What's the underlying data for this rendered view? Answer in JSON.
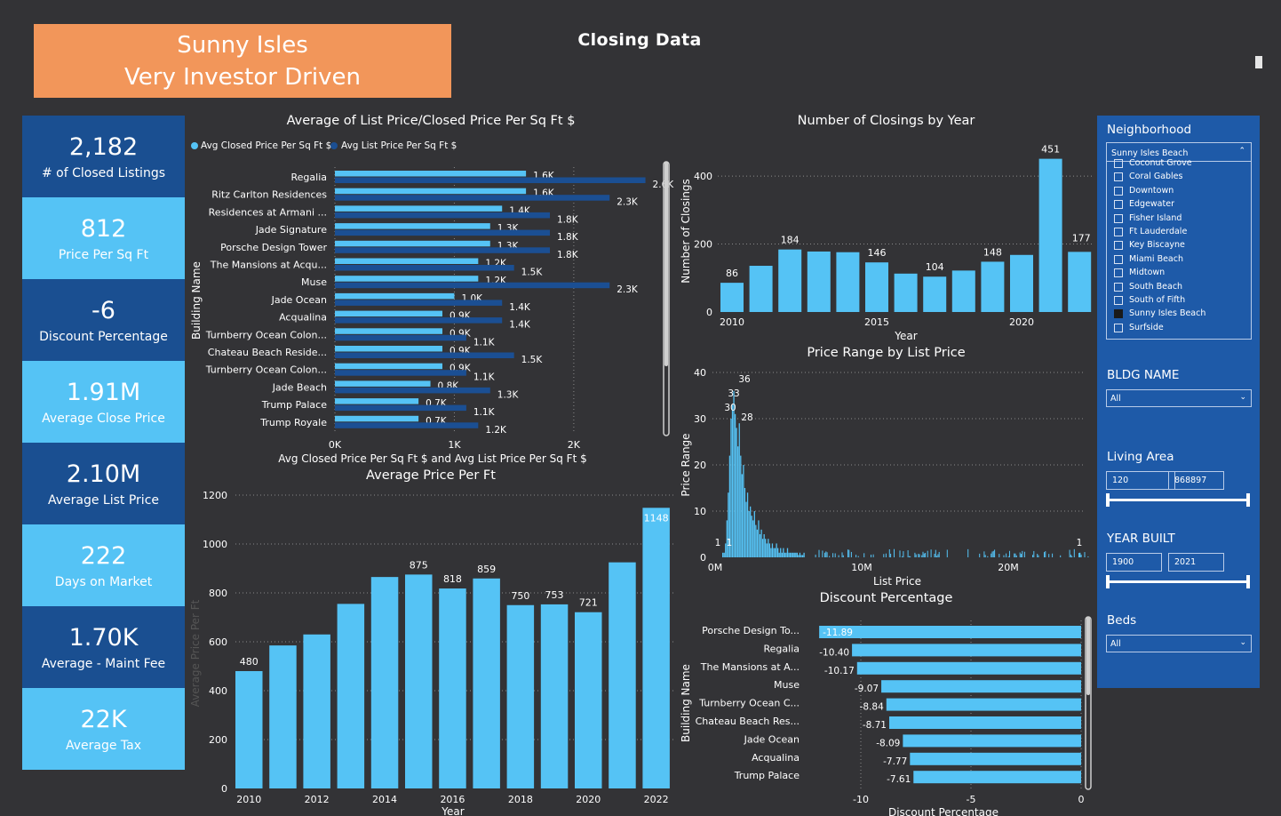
{
  "banner": {
    "line1": "Sunny Isles",
    "line2": "Very Investor Driven"
  },
  "page_title": "Closing Data",
  "colors": {
    "light_blue": "#55C3F5",
    "dark_blue": "#1B4F93",
    "kpi_dark": "#1A4F91",
    "kpi_light": "#55C3F5",
    "banner": "#F2965A",
    "background": "#333336",
    "slicer": "#1E5AA8"
  },
  "kpis": [
    {
      "value": "2,182",
      "label": "# of Closed Listings"
    },
    {
      "value": "812",
      "label": "Price Per Sq Ft"
    },
    {
      "value": "-6",
      "label": "Discount Percentage"
    },
    {
      "value": "1.91M",
      "label": "Average Close Price"
    },
    {
      "value": "2.10M",
      "label": "Average List Price"
    },
    {
      "value": "222",
      "label": "Days on Market"
    },
    {
      "value": "1.70K",
      "label": "Average - Maint Fee"
    },
    {
      "value": "22K",
      "label": "Average Tax"
    }
  ],
  "charts": {
    "psf": {
      "title": "Average of List Price/Closed Price Per Sq Ft $",
      "legend": [
        "Avg Closed Price Per Sq Ft $",
        "Avg List Price Per Sq Ft $"
      ],
      "ylabel": "Building Name",
      "xlabel": "Avg Closed Price Per Sq Ft $ and Avg List Price Per Sq Ft $"
    },
    "closings": {
      "title": "Number of Closings by Year",
      "ylabel": "Number of Closings",
      "xlabel": "Year"
    },
    "price_range": {
      "title": "Price Range by List Price",
      "ylabel": "Price Range",
      "xlabel": "List Price"
    },
    "avg_ppf": {
      "title": "Average Price Per Ft",
      "ylabel": "Average Price Per Ft",
      "xlabel": "Year"
    },
    "discount": {
      "title": "Discount Percentage",
      "ylabel": "Building Name",
      "xlabel": "Discount Percentage"
    }
  },
  "chart_data": [
    {
      "id": "psf",
      "type": "bar",
      "orientation": "horizontal",
      "categories": [
        "Regalia",
        "Ritz Carlton Residences",
        "Residences at Armani ...",
        "Jade Signature",
        "Porsche Design Tower",
        "The Mansions at Acqu...",
        "Muse",
        "Jade Ocean",
        "Acqualina",
        "Turnberry Ocean Colon...",
        "Chateau Beach Reside...",
        "Turnberry Ocean Colon...",
        "Jade Beach",
        "Trump Palace",
        "Trump Royale"
      ],
      "series": [
        {
          "name": "Avg Closed Price Per Sq Ft $",
          "values": [
            1600,
            1600,
            1400,
            1300,
            1300,
            1200,
            1200,
            1000,
            900,
            900,
            900,
            900,
            800,
            700,
            700
          ],
          "labels": [
            "1.6K",
            "1.6K",
            "1.4K",
            "1.3K",
            "1.3K",
            "1.2K",
            "1.2K",
            "1.0K",
            "0.9K",
            "0.9K",
            "0.9K",
            "0.9K",
            "0.8K",
            "0.7K",
            "0.7K"
          ]
        },
        {
          "name": "Avg List Price Per Sq Ft $",
          "values": [
            2600,
            2300,
            1800,
            1800,
            1800,
            1500,
            2300,
            1400,
            1400,
            1100,
            1500,
            1100,
            1300,
            1100,
            1200
          ],
          "labels": [
            "2.6K",
            "2.3K",
            "1.8K",
            "1.8K",
            "1.8K",
            "1.5K",
            "2.3K",
            "1.4K",
            "1.4K",
            "1.1K",
            "1.5K",
            "1.1K",
            "1.3K",
            "1.1K",
            "1.2K"
          ]
        }
      ],
      "xticks": [
        "0K",
        "1K",
        "2K"
      ],
      "xlim": [
        0,
        2700
      ]
    },
    {
      "id": "closings",
      "type": "bar",
      "x": [
        2010,
        2011,
        2012,
        2013,
        2014,
        2015,
        2016,
        2017,
        2018,
        2019,
        2020,
        2021,
        2022
      ],
      "values": [
        86,
        136,
        184,
        178,
        176,
        146,
        113,
        104,
        122,
        148,
        168,
        451,
        177
      ],
      "data_labels": [
        "86",
        "",
        "184",
        "",
        "",
        "146",
        "",
        "104",
        "",
        "148",
        "",
        "451",
        "177"
      ],
      "yticks": [
        "0",
        "200",
        "400"
      ],
      "xticks": [
        "2010",
        "2015",
        "2020"
      ],
      "ylim": [
        0,
        450
      ]
    },
    {
      "id": "price_range",
      "type": "bar",
      "yticks": [
        "0",
        "10",
        "20",
        "30",
        "40"
      ],
      "xticks": [
        "0M",
        "10M",
        "20M"
      ],
      "ylim": [
        0,
        40
      ],
      "annotations": [
        "36",
        "33",
        "30",
        "28",
        "1",
        "1",
        "1"
      ]
    },
    {
      "id": "avg_ppf",
      "type": "bar",
      "x": [
        2010,
        2011,
        2012,
        2013,
        2014,
        2015,
        2016,
        2017,
        2018,
        2019,
        2020,
        2021,
        2022
      ],
      "values": [
        480,
        585,
        630,
        755,
        865,
        875,
        818,
        859,
        750,
        753,
        721,
        925,
        1148
      ],
      "data_labels": [
        "480",
        "",
        "",
        "",
        "",
        "875",
        "818",
        "859",
        "750",
        "753",
        "721",
        "",
        "1148"
      ],
      "yticks": [
        "0",
        "200",
        "400",
        "600",
        "800",
        "1000",
        "1200"
      ],
      "xticks": [
        "2010",
        "2012",
        "2014",
        "2016",
        "2018",
        "2020",
        "2022"
      ],
      "ylim": [
        0,
        1200
      ]
    },
    {
      "id": "discount",
      "type": "bar",
      "orientation": "horizontal",
      "categories": [
        "Porsche Design To...",
        "Regalia",
        "The Mansions at A...",
        "Muse",
        "Turnberry Ocean C...",
        "Chateau Beach Res...",
        "Jade Ocean",
        "Acqualina",
        "Trump Palace"
      ],
      "values": [
        -11.89,
        -10.4,
        -10.17,
        -9.07,
        -8.84,
        -8.71,
        -8.09,
        -7.77,
        -7.61
      ],
      "labels": [
        "-11.89",
        "-10.40",
        "-10.17",
        "-9.07",
        "-8.84",
        "-8.71",
        "-8.09",
        "-7.77",
        "-7.61"
      ],
      "xticks": [
        "-10",
        "-5",
        "0"
      ],
      "xlim": [
        -12.5,
        0
      ]
    }
  ],
  "slicers": {
    "neighborhood": {
      "title": "Neighborhood",
      "selected": "Sunny Isles Beach",
      "items": [
        {
          "label": "Coconut Grove",
          "checked": false
        },
        {
          "label": "Coral Gables",
          "checked": false
        },
        {
          "label": "Downtown",
          "checked": false
        },
        {
          "label": "Edgewater",
          "checked": false
        },
        {
          "label": "Fisher Island",
          "checked": false
        },
        {
          "label": "Ft Lauderdale",
          "checked": false
        },
        {
          "label": "Key Biscayne",
          "checked": false
        },
        {
          "label": "Miami Beach",
          "checked": false
        },
        {
          "label": "Midtown",
          "checked": false
        },
        {
          "label": "South Beach",
          "checked": false
        },
        {
          "label": "South of Fifth",
          "checked": false
        },
        {
          "label": "Sunny Isles Beach",
          "checked": true
        },
        {
          "label": "Surfside",
          "checked": false
        }
      ]
    },
    "bldg_name": {
      "title": "BLDG NAME",
      "value": "All"
    },
    "living_area": {
      "title": "Living Area",
      "min": "120",
      "max": "868897"
    },
    "year_built": {
      "title": "YEAR BUILT",
      "min": "1900",
      "max": "2021"
    },
    "beds": {
      "title": "Beds",
      "value": "All"
    }
  }
}
